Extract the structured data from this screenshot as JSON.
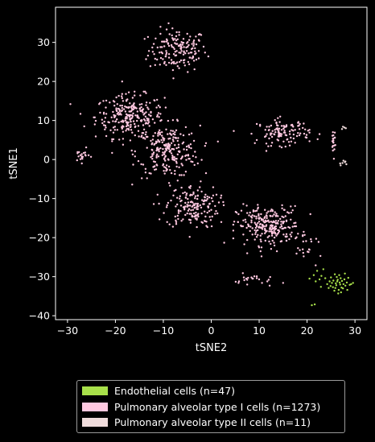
{
  "chart_data": {
    "type": "scatter",
    "xlabel": "tSNE2",
    "ylabel": "tSNE1",
    "xlim": [
      -32.5,
      32.5
    ],
    "ylim": [
      -41,
      39
    ],
    "xticks": [
      -30,
      -20,
      -10,
      0,
      10,
      20,
      30
    ],
    "yticks": [
      -40,
      -30,
      -20,
      -10,
      0,
      10,
      20,
      30
    ],
    "grid": false,
    "legend_position": "bottom",
    "background": "#000000",
    "series": [
      {
        "name": "Endothelial cells (n=47)",
        "color": "#a8e04a",
        "points": [
          [
            26.1,
            -32.2
          ],
          [
            26.8,
            -31.5
          ],
          [
            25.5,
            -31.0
          ],
          [
            27.2,
            -32.8
          ],
          [
            26.4,
            -30.8
          ],
          [
            25.9,
            -32.9
          ],
          [
            27.6,
            -31.9
          ],
          [
            26.0,
            -31.7
          ],
          [
            24.9,
            -32.4
          ],
          [
            27.0,
            -30.4
          ],
          [
            26.6,
            -33.4
          ],
          [
            25.2,
            -31.6
          ],
          [
            28.0,
            -32.3
          ],
          [
            26.3,
            -31.2
          ],
          [
            27.3,
            -31.1
          ],
          [
            25.7,
            -33.6
          ],
          [
            26.9,
            -32.0
          ],
          [
            24.7,
            -31.2
          ],
          [
            27.8,
            -30.7
          ],
          [
            26.2,
            -30.1
          ],
          [
            25.4,
            -32.7
          ],
          [
            27.5,
            -33.0
          ],
          [
            28.3,
            -31.5
          ],
          [
            24.5,
            -32.9
          ],
          [
            26.7,
            -29.6
          ],
          [
            29.2,
            -31.9
          ],
          [
            29.6,
            -31.6
          ],
          [
            28.9,
            -32.1
          ],
          [
            23.8,
            -30.4
          ],
          [
            21.4,
            -29.6
          ],
          [
            22.1,
            -28.5
          ],
          [
            23.4,
            -28.1
          ],
          [
            22.6,
            -30.7
          ],
          [
            21.0,
            -37.3
          ],
          [
            21.6,
            -37.1
          ],
          [
            20.5,
            -30.5
          ],
          [
            27.9,
            -29.2
          ],
          [
            24.2,
            -31.9
          ],
          [
            25.0,
            -30.2
          ],
          [
            27.1,
            -34.0
          ],
          [
            26.5,
            -34.3
          ],
          [
            28.6,
            -30.3
          ],
          [
            23.0,
            -29.8
          ],
          [
            21.8,
            -31.2
          ],
          [
            28.4,
            -33.4
          ],
          [
            25.8,
            -29.4
          ],
          [
            22.9,
            -32.6
          ]
        ]
      },
      {
        "name": "Pulmonary alveolar type I cells (n=1273)",
        "color": "#ffc8e0",
        "points": []
      },
      {
        "name": "Pulmonary alveolar type II cells (n=11)",
        "color": "#f0dcdc",
        "points": [
          [
            27.8,
            8.2
          ],
          [
            28.1,
            8.0
          ],
          [
            27.5,
            8.4
          ],
          [
            27.9,
            -0.7
          ],
          [
            28.2,
            -1.2
          ],
          [
            27.4,
            -0.9
          ],
          [
            27.0,
            -1.5
          ],
          [
            27.6,
            -0.3
          ],
          [
            27.3,
            7.8
          ],
          [
            26.9,
            -1.0
          ],
          [
            28.0,
            -0.5
          ]
        ]
      }
    ],
    "clusters": [
      {
        "center": [
          -7,
          28
        ],
        "spread": [
          5.5,
          5.0
        ],
        "count": 160
      },
      {
        "center": [
          -17,
          11
        ],
        "spread": [
          6.5,
          5.0
        ],
        "count": 260
      },
      {
        "center": [
          -9,
          2
        ],
        "spread": [
          6.0,
          6.0
        ],
        "count": 230
      },
      {
        "center": [
          -4,
          -12
        ],
        "spread": [
          5.0,
          5.0
        ],
        "count": 170
      },
      {
        "center": [
          12,
          -17
        ],
        "spread": [
          6.0,
          4.5
        ],
        "count": 250
      },
      {
        "center": [
          15,
          7
        ],
        "spread": [
          5.0,
          3.0
        ],
        "count": 120
      },
      {
        "center": [
          9,
          -31
        ],
        "spread": [
          4.0,
          1.5
        ],
        "count": 23
      },
      {
        "center": [
          -27,
          1
        ],
        "spread": [
          1.5,
          1.5
        ],
        "count": 20
      },
      {
        "center": [
          25.5,
          5
        ],
        "spread": [
          0.4,
          3.5
        ],
        "count": 20
      },
      {
        "center": [
          20,
          -23
        ],
        "spread": [
          3.0,
          3.0
        ],
        "count": 20
      }
    ]
  }
}
